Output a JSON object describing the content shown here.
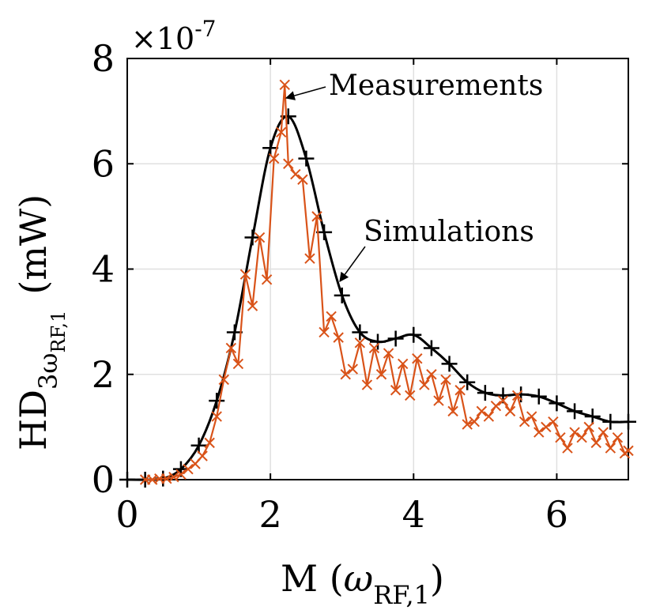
{
  "chart_data": {
    "type": "line",
    "xlabel_main": "M (",
    "xlabel_symbol": "ω",
    "xlabel_sub": "RF,1",
    "xlabel_close": ")",
    "ylabel_main": "HD",
    "ylabel_sub": "3ω",
    "ylabel_subsub": "RF,1",
    "ylabel_unit": "(mW)",
    "y_exponent": "×10",
    "y_exponent_power": "-7",
    "xlim": [
      0,
      7
    ],
    "ylim": [
      0,
      8
    ],
    "xticks": [
      0,
      2,
      4,
      6
    ],
    "yticks": [
      0,
      2,
      4,
      6,
      8
    ],
    "grid": true,
    "colors": {
      "measured": "#d95319",
      "simulated": "#000000",
      "grid": "#e0e0e0"
    },
    "annotations": [
      {
        "text": "Measurements",
        "target_series": "Measurements"
      },
      {
        "text": "Simulations",
        "target_series": "Simulations"
      }
    ],
    "series": [
      {
        "name": "Simulations",
        "marker": "plus",
        "x": [
          0.0,
          0.25,
          0.5,
          0.75,
          1.0,
          1.25,
          1.5,
          1.75,
          2.0,
          2.25,
          2.5,
          2.75,
          3.0,
          3.25,
          3.5,
          3.75,
          4.0,
          4.25,
          4.5,
          4.75,
          5.0,
          5.25,
          5.5,
          5.75,
          6.0,
          6.25,
          6.5,
          6.75,
          7.0
        ],
        "y": [
          0.0,
          0.0,
          0.02,
          0.2,
          0.65,
          1.5,
          2.8,
          4.6,
          6.3,
          6.9,
          6.1,
          4.7,
          3.5,
          2.8,
          2.62,
          2.68,
          2.75,
          2.5,
          2.2,
          1.85,
          1.65,
          1.6,
          1.62,
          1.58,
          1.45,
          1.3,
          1.2,
          1.1,
          1.1
        ]
      },
      {
        "name": "Measurements",
        "marker": "x",
        "x": [
          0.25,
          0.35,
          0.45,
          0.55,
          0.65,
          0.75,
          0.85,
          0.95,
          1.05,
          1.15,
          1.25,
          1.35,
          1.45,
          1.55,
          1.65,
          1.75,
          1.85,
          1.95,
          2.05,
          2.15,
          2.2,
          2.25,
          2.35,
          2.45,
          2.55,
          2.65,
          2.75,
          2.85,
          2.95,
          3.05,
          3.15,
          3.25,
          3.35,
          3.45,
          3.55,
          3.65,
          3.75,
          3.85,
          3.95,
          4.05,
          4.15,
          4.25,
          4.35,
          4.45,
          4.55,
          4.65,
          4.75,
          4.85,
          4.95,
          5.05,
          5.15,
          5.25,
          5.35,
          5.45,
          5.55,
          5.65,
          5.75,
          5.85,
          5.95,
          6.05,
          6.15,
          6.25,
          6.35,
          6.45,
          6.55,
          6.65,
          6.75,
          6.85,
          6.95,
          7.0
        ],
        "y": [
          0.0,
          0.0,
          0.02,
          0.02,
          0.05,
          0.1,
          0.2,
          0.3,
          0.45,
          0.7,
          1.2,
          1.9,
          2.5,
          2.2,
          3.9,
          3.3,
          4.6,
          3.8,
          6.1,
          6.6,
          7.5,
          6.0,
          5.8,
          5.7,
          4.2,
          5.0,
          2.8,
          3.1,
          2.7,
          2.0,
          2.1,
          2.6,
          1.8,
          2.5,
          2.0,
          2.4,
          1.7,
          2.2,
          1.6,
          2.3,
          1.8,
          2.0,
          1.5,
          1.9,
          1.3,
          1.7,
          1.05,
          1.1,
          1.3,
          1.2,
          1.4,
          1.5,
          1.3,
          1.6,
          1.1,
          1.2,
          0.9,
          1.0,
          1.1,
          0.8,
          0.6,
          0.9,
          0.8,
          1.0,
          0.7,
          0.9,
          0.6,
          0.8,
          0.5,
          0.55
        ]
      }
    ]
  }
}
